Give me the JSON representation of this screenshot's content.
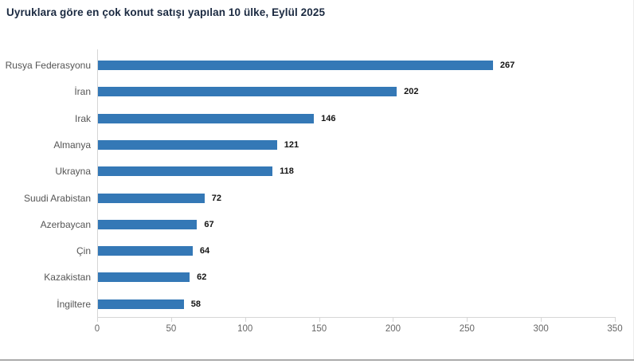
{
  "page": {
    "title": "Uyruklara göre en çok konut satışı yapılan 10 ülke, Eylül 2025"
  },
  "chart_data": {
    "type": "bar",
    "orientation": "horizontal",
    "title": "Uyruklara göre en çok konut satışı yapılan 10 ülke, Eylül 2025",
    "categories": [
      "Rusya Federasyonu",
      "İran",
      "Irak",
      "Almanya",
      "Ukrayna",
      "Suudi Arabistan",
      "Azerbaycan",
      "Çin",
      "Kazakistan",
      "İngiltere"
    ],
    "values": [
      267,
      202,
      146,
      121,
      118,
      72,
      67,
      64,
      62,
      58
    ],
    "xlabel": "",
    "ylabel": "",
    "xlim": [
      0,
      350
    ],
    "x_ticks": [
      0,
      50,
      100,
      150,
      200,
      250,
      300,
      350
    ],
    "grid": false,
    "legend": "none",
    "data_labels": true,
    "colors": {
      "bar": "#3478b6",
      "title": "#1b2a41",
      "category_label": "#555555",
      "value_label": "#141414",
      "tick_label": "#666666",
      "axis_line": "#d6d6d6"
    }
  }
}
